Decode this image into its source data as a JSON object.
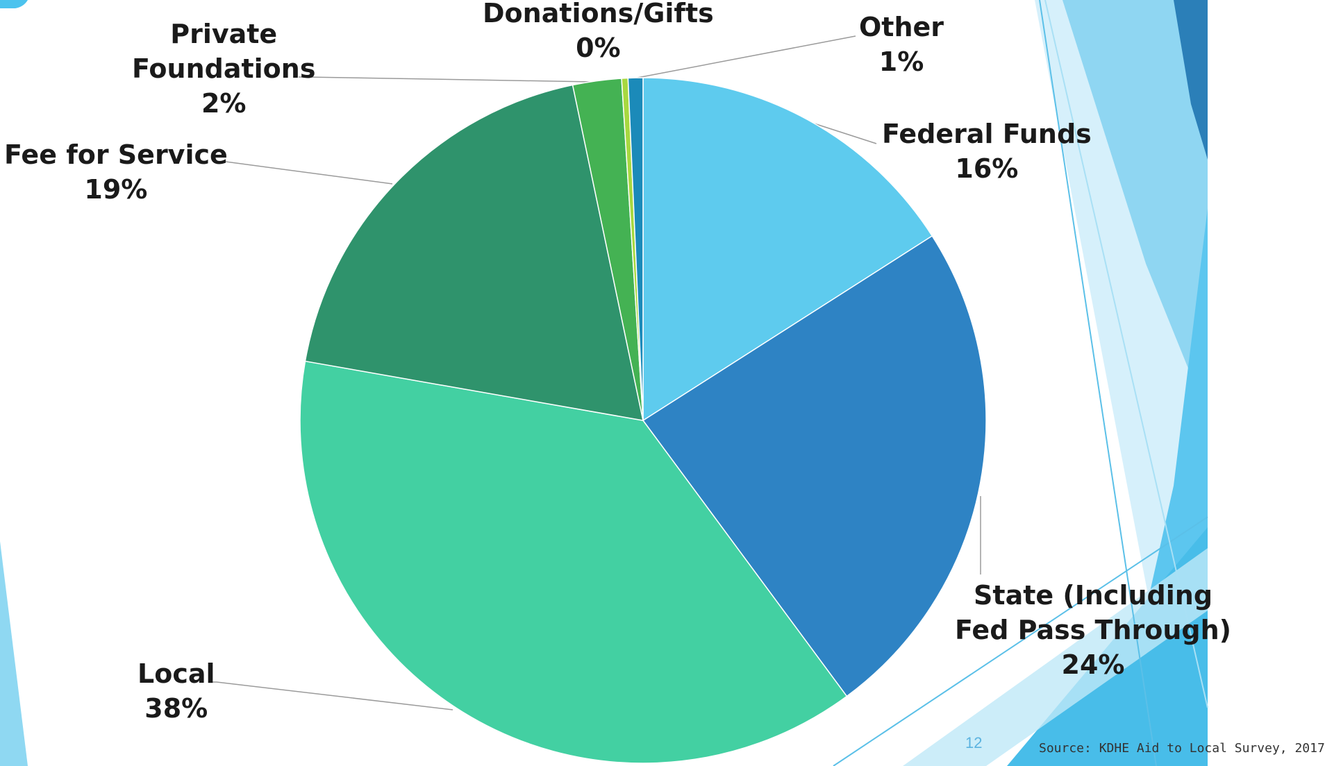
{
  "chart_data": {
    "type": "pie",
    "slices": [
      {
        "label": "Federal Funds",
        "display": "16%",
        "value": 16,
        "color": "#5ecbee"
      },
      {
        "label": "State (Including Fed Pass Through)",
        "display": "24%",
        "value": 24,
        "color": "#2e83c4"
      },
      {
        "label": "Local",
        "display": "38%",
        "value": 38,
        "color": "#43d0a2"
      },
      {
        "label": "Fee for Service",
        "display": "19%",
        "value": 19,
        "color": "#2f936c"
      },
      {
        "label": "Private Foundations",
        "display": "2%",
        "value": 2.3,
        "color": "#44b253"
      },
      {
        "label": "Donations/Gifts",
        "display": "0%",
        "value": 0.3,
        "color": "#a8d840"
      },
      {
        "label": "Other",
        "display": "1%",
        "value": 0.7,
        "color": "#1b8ab9"
      }
    ]
  },
  "footer": {
    "slide_number": "12",
    "source": "Source: KDHE Aid to Local Survey, 2017"
  }
}
